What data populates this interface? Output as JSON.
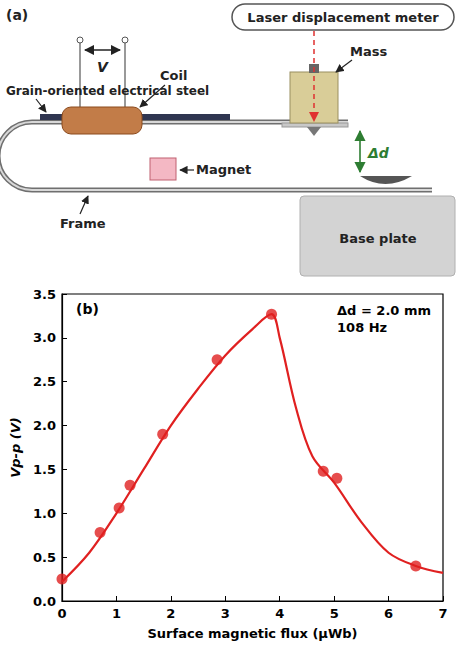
{
  "diagram": {
    "panel_label": "(a)",
    "labels": {
      "laser": "Laser displacement meter",
      "steel": "Grain-oriented electrical steel",
      "voltage": "V",
      "coil": "Coil",
      "mass": "Mass",
      "displacement": "Δd",
      "frame": "Frame",
      "magnet": "Magnet",
      "base_plate": "Base plate"
    }
  },
  "chart_data": {
    "type": "scatter",
    "panel_label": "(b)",
    "annotations": [
      "Δd = 2.0 mm",
      "108 Hz"
    ],
    "x_label": "Surface magnetic flux (μWb)",
    "y_label": "Vp-p (V)",
    "xlim": [
      0,
      7
    ],
    "xticks": [
      0,
      1,
      2,
      3,
      4,
      5,
      6,
      7
    ],
    "ylim": [
      0,
      3.5
    ],
    "yticks": [
      {
        "value": 0,
        "label": "0.0"
      },
      0.5,
      {
        "value": 1,
        "label": "1.0"
      },
      1.5,
      {
        "value": 2,
        "label": "2.0"
      },
      2.5,
      {
        "value": 3,
        "label": "3.0"
      },
      3.5
    ],
    "grid": false,
    "series": [
      {
        "type": "line",
        "color": "#e02020",
        "line_style": "solid",
        "x": [
          0,
          0.5,
          1.0,
          1.5,
          2.0,
          2.5,
          3.0,
          3.5,
          3.85,
          4.0,
          4.3,
          4.6,
          5.0,
          5.5,
          6.0,
          6.5,
          7.0
        ],
        "values": [
          0.22,
          0.55,
          1.0,
          1.5,
          2.0,
          2.42,
          2.8,
          3.1,
          3.27,
          3.0,
          2.2,
          1.65,
          1.35,
          0.9,
          0.55,
          0.4,
          0.32
        ]
      },
      {
        "type": "scatter",
        "color": "#e02020",
        "marker": "circle",
        "x": [
          0,
          0.7,
          1.05,
          1.25,
          1.85,
          2.85,
          3.85,
          4.8,
          5.05,
          6.5
        ],
        "values": [
          0.25,
          0.78,
          1.06,
          1.32,
          1.9,
          2.75,
          3.27,
          1.48,
          1.4,
          0.4
        ]
      }
    ]
  }
}
